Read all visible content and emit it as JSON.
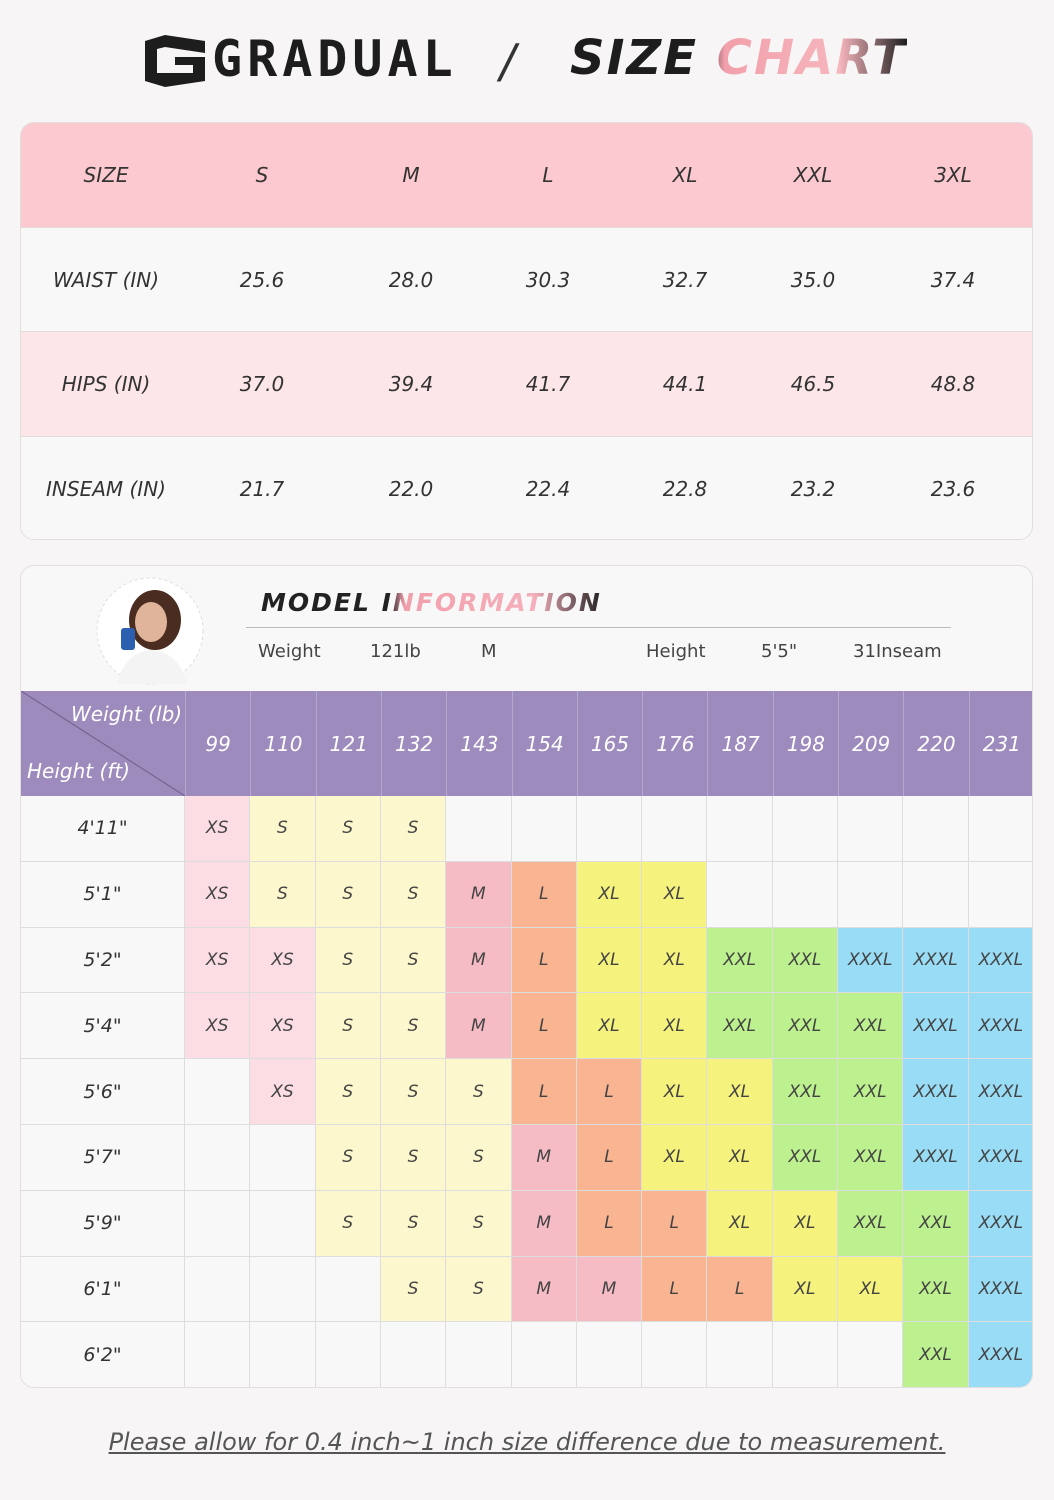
{
  "header": {
    "brand": "GRADUAL",
    "separator": "/",
    "title": "SIZE CHART"
  },
  "size_table": {
    "columns": [
      "SIZE",
      "S",
      "M",
      "L",
      "XL",
      "XXL",
      "3XL"
    ],
    "rows": [
      [
        "WAIST (IN)",
        "25.6",
        "28.0",
        "30.3",
        "32.7",
        "35.0",
        "37.4"
      ],
      [
        "HIPS (IN)",
        "37.0",
        "39.4",
        "41.7",
        "44.1",
        "46.5",
        "48.8"
      ],
      [
        "INSEAM (IN)",
        "21.7",
        "22.0",
        "22.4",
        "22.8",
        "23.2",
        "23.6"
      ]
    ]
  },
  "model": {
    "title": "MODEL INFORMATION",
    "details": [
      "Weight",
      "121lb",
      "M",
      "Height",
      "5'5\"",
      "31Inseam"
    ]
  },
  "fit_table": {
    "corner_top": "Weight (lb)",
    "corner_bottom": "Height (ft)",
    "weights": [
      "99",
      "110",
      "121",
      "132",
      "143",
      "154",
      "165",
      "176",
      "187",
      "198",
      "209",
      "220",
      "231"
    ],
    "size_colors": {
      "XS": "#fbdde3",
      "S": "#fcf7cc",
      "M": "#f6bcc5",
      "L": "#f9b592",
      "XL": "#f5f27e",
      "XXL": "#bdf08e",
      "XXXL": "#98dcf6"
    },
    "rows": [
      {
        "height": "4'11\"",
        "cells": [
          "XS",
          "S",
          "S",
          "S",
          null,
          null,
          null,
          null,
          null,
          null,
          null,
          null,
          null
        ]
      },
      {
        "height": "5'1\"",
        "cells": [
          "XS",
          "S",
          "S",
          "S",
          "M",
          "L",
          "XL",
          "XL",
          null,
          null,
          null,
          null,
          null
        ]
      },
      {
        "height": "5'2\"",
        "cells": [
          "XS",
          "XS",
          "S",
          "S",
          "M",
          "L",
          "XL",
          "XL",
          "XXL",
          "XXL",
          "XXXL",
          "XXXL",
          "XXXL"
        ]
      },
      {
        "height": "5'4\"",
        "cells": [
          "XS",
          "XS",
          "S",
          "S",
          "M",
          "L",
          "XL",
          "XL",
          "XXL",
          "XXL",
          "XXL",
          "XXXL",
          "XXXL"
        ]
      },
      {
        "height": "5'6\"",
        "cells": [
          null,
          "XS",
          "S",
          "S",
          "S",
          "L",
          "L",
          "XL",
          "XL",
          "XXL",
          "XXL",
          "XXXL",
          "XXXL"
        ]
      },
      {
        "height": "5'7\"",
        "cells": [
          null,
          null,
          "S",
          "S",
          "S",
          "M",
          "L",
          "XL",
          "XL",
          "XXL",
          "XXL",
          "XXXL",
          "XXXL"
        ]
      },
      {
        "height": "5'9\"",
        "cells": [
          null,
          null,
          "S",
          "S",
          "S",
          "M",
          "L",
          "L",
          "XL",
          "XL",
          "XXL",
          "XXL",
          "XXXL"
        ]
      },
      {
        "height": "6'1\"",
        "cells": [
          null,
          null,
          null,
          "S",
          "S",
          "M",
          "M",
          "L",
          "L",
          "XL",
          "XL",
          "XXL",
          "XXXL"
        ]
      },
      {
        "height": "6'2\"",
        "cells": [
          null,
          null,
          null,
          null,
          null,
          null,
          null,
          null,
          null,
          null,
          null,
          "XXL",
          "XXXL"
        ]
      }
    ]
  },
  "footer": {
    "note": "Please allow for 0.4 inch~1 inch size difference due to measurement."
  }
}
